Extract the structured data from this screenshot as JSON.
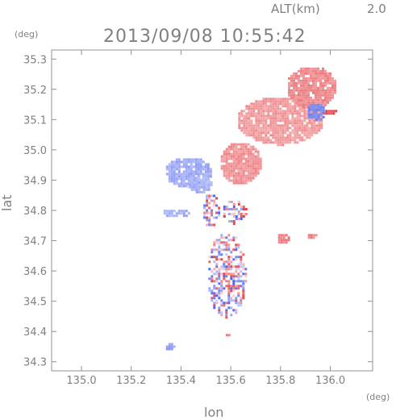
{
  "chart_data": {
    "type": "heatmap",
    "title": "2013/09/08 10:55:42",
    "altitude_label": "ALT(km)",
    "altitude_value": "2.0",
    "xlabel": "lon",
    "ylabel": "lat",
    "x_unit": "(deg)",
    "y_unit": "(deg)",
    "xlim": [
      134.88,
      136.17
    ],
    "ylim": [
      34.27,
      35.33
    ],
    "x_ticks": [
      135.0,
      135.2,
      135.4,
      135.6,
      135.8,
      136.0
    ],
    "x_tick_labels": [
      "135.0",
      "135.2",
      "135.4",
      "135.6",
      "135.8",
      "136.0"
    ],
    "y_ticks": [
      34.3,
      34.4,
      34.5,
      34.6,
      34.7,
      34.8,
      34.9,
      35.0,
      35.1,
      35.2,
      35.3
    ],
    "y_tick_labels": [
      "34.3",
      "34.4",
      "34.5",
      "34.6",
      "34.7",
      "34.8",
      "34.9",
      "35.0",
      "35.1",
      "35.2",
      "35.3"
    ],
    "grid": false,
    "colors": {
      "axis": "#909090",
      "positive": "#e0505a",
      "positive_light": "#f6c9c9",
      "negative": "#4858d8",
      "negative_light": "#cdd3f6"
    },
    "regions": [
      {
        "lon": [
          135.62,
          135.97
        ],
        "lat": [
          35.02,
          35.18
        ],
        "value": 0.35
      },
      {
        "lon": [
          135.82,
          136.02
        ],
        "lat": [
          35.14,
          35.28
        ],
        "value": 0.45
      },
      {
        "lon": [
          135.55,
          135.72
        ],
        "lat": [
          34.89,
          35.03
        ],
        "value": 0.4
      },
      {
        "lon": [
          135.33,
          135.52
        ],
        "lat": [
          34.88,
          34.98
        ],
        "value": -0.35
      },
      {
        "lon": [
          135.42,
          135.52
        ],
        "lat": [
          34.86,
          34.92
        ],
        "value": -0.3
      },
      {
        "lon": [
          135.32,
          135.43
        ],
        "lat": [
          34.78,
          34.81
        ],
        "value": -0.3
      },
      {
        "lon": [
          135.5,
          135.66
        ],
        "lat": [
          34.45,
          34.73
        ],
        "value": 0.0,
        "mixed": true
      },
      {
        "lon": [
          135.48,
          135.55
        ],
        "lat": [
          34.75,
          34.86
        ],
        "value": 0.0,
        "mixed": true
      },
      {
        "lon": [
          135.56,
          135.66
        ],
        "lat": [
          34.76,
          34.84
        ],
        "value": 0.0,
        "mixed": true
      },
      {
        "lon": [
          135.78,
          135.83
        ],
        "lat": [
          34.69,
          34.73
        ],
        "value": 0.5
      },
      {
        "lon": [
          135.9,
          135.95
        ],
        "lat": [
          34.71,
          34.73
        ],
        "value": 0.5
      },
      {
        "lon": [
          135.33,
          135.37
        ],
        "lat": [
          34.34,
          34.37
        ],
        "value": -0.4
      },
      {
        "lon": [
          135.57,
          135.6
        ],
        "lat": [
          34.39,
          34.4
        ],
        "value": 0.5
      },
      {
        "lon": [
          135.96,
          136.02
        ],
        "lat": [
          35.12,
          35.14
        ],
        "value": 0.8
      },
      {
        "lon": [
          135.9,
          135.98
        ],
        "lat": [
          35.1,
          35.16
        ],
        "value": -0.6
      }
    ]
  }
}
